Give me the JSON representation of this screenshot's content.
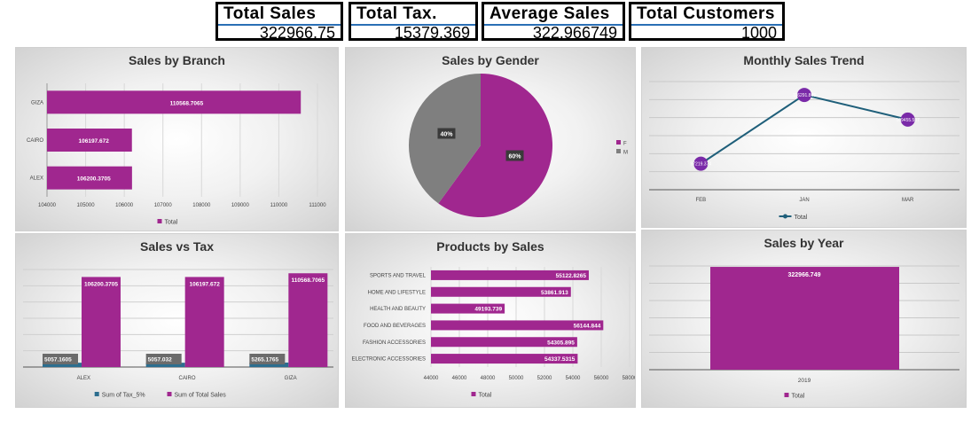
{
  "kpis": {
    "total_sales": {
      "label": "Total Sales",
      "value": "322966.75"
    },
    "total_tax": {
      "label": "Total Tax.",
      "value": "15379.369"
    },
    "average_sales": {
      "label": "Average Sales",
      "value": "322.966749"
    },
    "total_customers": {
      "label": "Total Customers",
      "value": "1000"
    }
  },
  "colors": {
    "purple": "#a0278f",
    "gray": "#7f7f7f",
    "teal": "#2c6e8f",
    "navy": "#1f5f7a"
  },
  "chart_data": [
    {
      "id": "branch",
      "type": "bar",
      "orientation": "horizontal",
      "title": "Sales by Branch",
      "categories": [
        "GIZA",
        "CAIRO",
        "ALEX"
      ],
      "values": [
        110568.7065,
        106197.672,
        106200.3705
      ],
      "value_labels": [
        "110568.7065",
        "106197.672",
        "106200.3705"
      ],
      "xlim": [
        104000,
        111000
      ],
      "ticks": [
        "104000",
        "105000",
        "106000",
        "107000",
        "108000",
        "109000",
        "110000",
        "111000"
      ],
      "legend": "Total",
      "legend_position": "bottom"
    },
    {
      "id": "gender",
      "type": "pie",
      "title": "Sales by Gender",
      "labels": [
        "F",
        "M"
      ],
      "values": [
        60,
        40
      ],
      "value_labels": [
        "60%",
        "40%"
      ],
      "legend_position": "right"
    },
    {
      "id": "monthly",
      "type": "line",
      "title": "Monthly Sales Trend",
      "categories": [
        "FEB",
        "JAN",
        "MAR"
      ],
      "values": [
        97219.374,
        116291.868,
        109455.507
      ],
      "value_labels": [
        "97219.374",
        "116291.868",
        "109455.507"
      ],
      "legend": "Total",
      "legend_position": "bottom"
    },
    {
      "id": "salestax",
      "type": "bar",
      "title": "Sales vs Tax",
      "categories": [
        "ALEX",
        "CAIRO",
        "GIZA"
      ],
      "series": [
        {
          "name": "Sum of Tax_5%",
          "values": [
            5057.1605,
            5057.032,
            5265.1765
          ],
          "labels": [
            "5057.1605",
            "5057.032",
            "5265.1765"
          ]
        },
        {
          "name": "Sum of Total Sales",
          "values": [
            106200.3705,
            106197.672,
            110568.7065
          ],
          "labels": [
            "106200.3705",
            "106197.672",
            "110568.7065"
          ]
        }
      ],
      "legend_position": "bottom"
    },
    {
      "id": "products",
      "type": "bar",
      "orientation": "horizontal",
      "title": "Products by Sales",
      "categories": [
        "SPORTS AND TRAVEL",
        "HOME AND LIFESTYLE",
        "HEALTH AND BEAUTY",
        "FOOD AND BEVERAGES",
        "FASHION ACCESSORIES",
        "ELECTRONIC ACCESSORIES"
      ],
      "values": [
        55122.8265,
        53861.913,
        49193.739,
        56144.844,
        54305.895,
        54337.5315
      ],
      "value_labels": [
        "55122.8265",
        "53861.913",
        "49193.739",
        "56144.844",
        "54305.895",
        "54337.5315"
      ],
      "xlim": [
        44000,
        58000
      ],
      "ticks": [
        "44000",
        "46000",
        "48000",
        "50000",
        "52000",
        "54000",
        "56000",
        "58000"
      ],
      "legend": "Total",
      "legend_position": "bottom"
    },
    {
      "id": "year",
      "type": "bar",
      "title": "Sales by Year",
      "categories": [
        "2019"
      ],
      "values": [
        322966.749
      ],
      "value_labels": [
        "322966.749"
      ],
      "legend": "Total",
      "legend_position": "bottom"
    }
  ]
}
